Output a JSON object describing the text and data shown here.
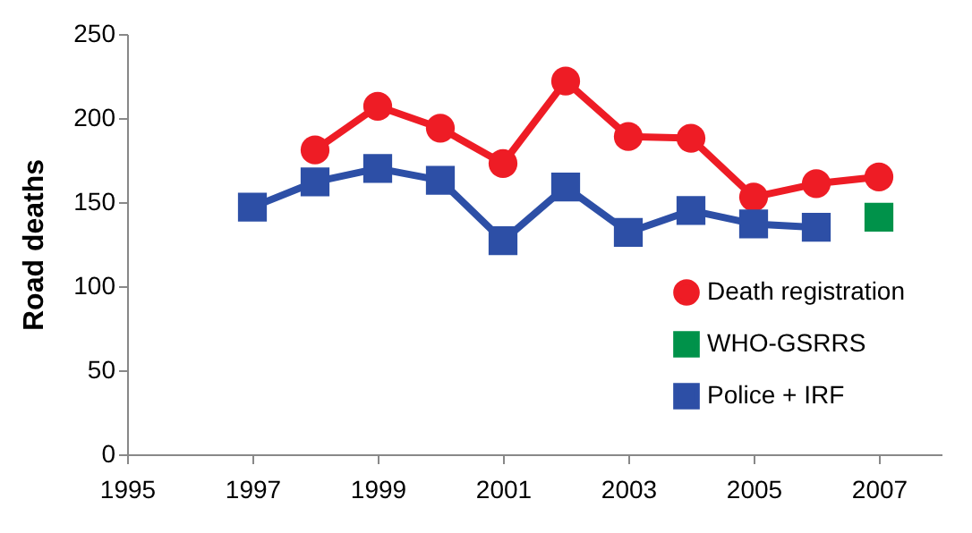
{
  "chart_data": {
    "type": "line",
    "ylabel": "Road deaths",
    "x": [
      1997,
      1998,
      1999,
      2000,
      2001,
      2002,
      2003,
      2004,
      2005,
      2006,
      2007
    ],
    "series": [
      {
        "name": "Death registration",
        "color": "#ee1c25",
        "marker": "circle",
        "values": [
          null,
          181,
          207,
          194,
          173,
          222,
          189,
          188,
          153,
          161,
          165
        ]
      },
      {
        "name": "WHO-GSRRS",
        "color": "#00924a",
        "type": "scatter",
        "marker": "square",
        "x": [
          2007
        ],
        "values": [
          141
        ]
      },
      {
        "name": "Police + IRF",
        "color": "#2d4fa6",
        "marker": "square",
        "values": [
          147,
          162,
          170,
          163,
          127,
          159,
          132,
          145,
          137,
          135,
          null
        ]
      }
    ],
    "xlim": [
      1995,
      2008
    ],
    "xticks": [
      1995,
      1997,
      1999,
      2001,
      2003,
      2005,
      2007
    ],
    "ylim": [
      0,
      250
    ],
    "yticks": [
      0,
      50,
      100,
      150,
      200,
      250
    ],
    "grid": false,
    "legend": "bottom right"
  }
}
